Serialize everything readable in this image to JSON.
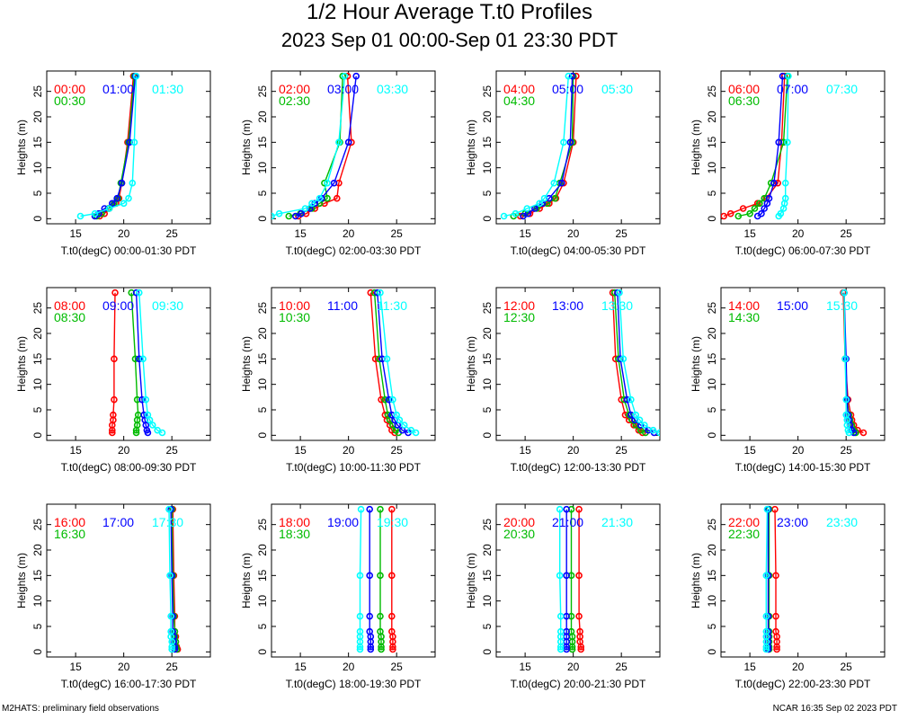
{
  "title": "1/2 Hour Average T.t0 Profiles",
  "subtitle": "2023 Sep 01 00:00-Sep 01 23:30 PDT",
  "footer_left": "M2HATS: preliminary field observations",
  "footer_right": "NCAR 16:35 Sep 02 2023 PDT",
  "colors": {
    "slot1": "#ff0000",
    "slot2": "#00bb00",
    "slot3": "#0000ff",
    "slot4": "#00ffff"
  },
  "chart_data": [
    {
      "type": "line",
      "xlabel": "T.t0(degC) 00:00-01:30 PDT",
      "ylabel": "Heights (m)",
      "xlim": [
        12,
        29
      ],
      "ylim": [
        -1,
        29
      ],
      "xticks": [
        15,
        20,
        25
      ],
      "yticks": [
        0,
        5,
        10,
        15,
        20,
        25
      ],
      "heights": [
        0.5,
        1,
        2,
        3,
        4,
        7,
        15,
        28
      ],
      "series": [
        {
          "name": "00:00",
          "color": "#ff0000",
          "values": [
            17.5,
            18.0,
            18.5,
            19.2,
            19.5,
            19.8,
            20.4,
            21.0
          ]
        },
        {
          "name": "00:30",
          "color": "#00bb00",
          "values": [
            17.2,
            17.7,
            18.4,
            19.0,
            19.4,
            19.7,
            20.5,
            21.1
          ]
        },
        {
          "name": "01:00",
          "color": "#0000ff",
          "values": [
            17.0,
            17.4,
            18.0,
            18.8,
            19.3,
            19.8,
            20.6,
            21.2
          ]
        },
        {
          "name": "01:30",
          "color": "#00ffff",
          "values": [
            15.5,
            17.0,
            18.5,
            20.0,
            20.5,
            20.9,
            21.1,
            21.3
          ]
        }
      ]
    },
    {
      "type": "line",
      "xlabel": "T.t0(degC) 02:00-03:30 PDT",
      "ylabel": "Heights (m)",
      "xlim": [
        12,
        29
      ],
      "ylim": [
        -1,
        29
      ],
      "xticks": [
        15,
        20,
        25
      ],
      "yticks": [
        0,
        5,
        10,
        15,
        20,
        25
      ],
      "heights": [
        0.5,
        1,
        2,
        3,
        4,
        7,
        15,
        28
      ],
      "series": [
        {
          "name": "02:00",
          "color": "#ff0000",
          "values": [
            14.8,
            15.6,
            16.5,
            17.5,
            18.8,
            19.0,
            20.3,
            19.9
          ]
        },
        {
          "name": "02:30",
          "color": "#00bb00",
          "values": [
            13.8,
            15.0,
            16.2,
            17.0,
            17.8,
            17.5,
            19.1,
            19.4
          ]
        },
        {
          "name": "03:00",
          "color": "#0000ff",
          "values": [
            14.5,
            15.1,
            16.0,
            16.5,
            17.2,
            18.5,
            20.0,
            20.8
          ]
        },
        {
          "name": "03:30",
          "color": "#00ffff",
          "values": [
            12.0,
            12.8,
            15.5,
            16.2,
            17.0,
            17.8,
            19.0,
            19.6
          ]
        }
      ]
    },
    {
      "type": "line",
      "xlabel": "T.t0(degC) 04:00-05:30 PDT",
      "ylabel": "Heights (m)",
      "xlim": [
        12,
        29
      ],
      "ylim": [
        -1,
        29
      ],
      "xticks": [
        15,
        20,
        25
      ],
      "yticks": [
        0,
        5,
        10,
        15,
        20,
        25
      ],
      "heights": [
        0.5,
        1,
        2,
        3,
        4,
        7,
        15,
        28
      ],
      "series": [
        {
          "name": "04:00",
          "color": "#ff0000",
          "values": [
            14.5,
            15.5,
            16.5,
            17.5,
            18.2,
            19.0,
            20.0,
            20.3
          ]
        },
        {
          "name": "04:30",
          "color": "#00bb00",
          "values": [
            13.8,
            15.0,
            16.2,
            17.3,
            18.1,
            18.6,
            19.9,
            20.0
          ]
        },
        {
          "name": "05:00",
          "color": "#0000ff",
          "values": [
            14.8,
            15.3,
            16.0,
            16.8,
            17.5,
            18.8,
            19.7,
            19.9
          ]
        },
        {
          "name": "05:30",
          "color": "#00ffff",
          "values": [
            12.8,
            14.0,
            15.2,
            16.5,
            17.0,
            18.0,
            19.0,
            19.5
          ]
        }
      ]
    },
    {
      "type": "line",
      "xlabel": "T.t0(degC) 06:00-07:30 PDT",
      "ylabel": "Heights (m)",
      "xlim": [
        12,
        29
      ],
      "ylim": [
        -1,
        29
      ],
      "xticks": [
        15,
        20,
        25
      ],
      "yticks": [
        0,
        5,
        10,
        15,
        20,
        25
      ],
      "heights": [
        0.5,
        1,
        2,
        3,
        4,
        7,
        15,
        28
      ],
      "series": [
        {
          "name": "06:00",
          "color": "#ff0000",
          "values": [
            12.3,
            13.0,
            14.3,
            15.8,
            16.7,
            17.9,
            18.3,
            18.6
          ]
        },
        {
          "name": "06:30",
          "color": "#00bb00",
          "values": [
            13.8,
            15.0,
            15.5,
            16.0,
            16.5,
            17.2,
            18.5,
            18.9
          ]
        },
        {
          "name": "07:00",
          "color": "#0000ff",
          "values": [
            15.8,
            16.2,
            16.5,
            16.8,
            17.0,
            17.5,
            18.0,
            18.4
          ]
        },
        {
          "name": "07:30",
          "color": "#00ffff",
          "values": [
            18.0,
            18.2,
            18.5,
            18.6,
            18.7,
            18.7,
            18.9,
            19.0
          ]
        }
      ]
    },
    {
      "type": "line",
      "xlabel": "T.t0(degC) 08:00-09:30 PDT",
      "ylabel": "Heights (m)",
      "xlim": [
        12,
        29
      ],
      "ylim": [
        -1,
        29
      ],
      "xticks": [
        15,
        20,
        25
      ],
      "yticks": [
        0,
        5,
        10,
        15,
        20,
        25
      ],
      "heights": [
        0.5,
        1,
        2,
        3,
        4,
        7,
        15,
        28
      ],
      "series": [
        {
          "name": "08:00",
          "color": "#ff0000",
          "values": [
            18.8,
            18.8,
            18.8,
            18.9,
            18.9,
            19.0,
            19.0,
            19.1
          ]
        },
        {
          "name": "08:30",
          "color": "#00bb00",
          "values": [
            21.3,
            21.3,
            21.4,
            21.4,
            21.5,
            21.4,
            21.2,
            20.8
          ]
        },
        {
          "name": "09:00",
          "color": "#0000ff",
          "values": [
            22.5,
            22.4,
            22.3,
            22.2,
            22.1,
            21.9,
            21.6,
            21.3
          ]
        },
        {
          "name": "09:30",
          "color": "#00ffff",
          "values": [
            24.0,
            23.5,
            23.0,
            22.7,
            22.5,
            22.3,
            22.0,
            21.6
          ]
        }
      ]
    },
    {
      "type": "line",
      "xlabel": "T.t0(degC) 10:00-11:30 PDT",
      "ylabel": "Heights (m)",
      "xlim": [
        12,
        29
      ],
      "ylim": [
        -1,
        29
      ],
      "xticks": [
        15,
        20,
        25
      ],
      "yticks": [
        0,
        5,
        10,
        15,
        20,
        25
      ],
      "heights": [
        0.5,
        1,
        2,
        3,
        4,
        7,
        15,
        28
      ],
      "series": [
        {
          "name": "10:00",
          "color": "#ff0000",
          "values": [
            24.8,
            24.5,
            24.3,
            24.0,
            23.8,
            23.4,
            22.8,
            22.3
          ]
        },
        {
          "name": "10:30",
          "color": "#00bb00",
          "values": [
            25.2,
            24.9,
            24.6,
            24.3,
            24.1,
            23.8,
            23.2,
            22.7
          ]
        },
        {
          "name": "11:00",
          "color": "#0000ff",
          "values": [
            26.2,
            25.6,
            25.1,
            24.8,
            24.5,
            24.2,
            23.5,
            23.0
          ]
        },
        {
          "name": "11:30",
          "color": "#00ffff",
          "values": [
            27.0,
            26.5,
            25.8,
            25.3,
            25.0,
            24.6,
            24.0,
            23.3
          ]
        }
      ]
    },
    {
      "type": "line",
      "xlabel": "T.t0(degC) 12:00-13:30 PDT",
      "ylabel": "Heights (m)",
      "xlim": [
        12,
        29
      ],
      "ylim": [
        -1,
        29
      ],
      "xticks": [
        15,
        20,
        25
      ],
      "yticks": [
        0,
        5,
        10,
        15,
        20,
        25
      ],
      "heights": [
        0.5,
        1,
        2,
        3,
        4,
        7,
        15,
        28
      ],
      "series": [
        {
          "name": "12:00",
          "color": "#ff0000",
          "values": [
            27.2,
            26.8,
            26.3,
            25.8,
            25.4,
            25.0,
            24.4,
            24.1
          ]
        },
        {
          "name": "12:30",
          "color": "#00bb00",
          "values": [
            27.5,
            27.0,
            26.5,
            26.1,
            25.8,
            25.3,
            24.7,
            24.3
          ]
        },
        {
          "name": "13:00",
          "color": "#0000ff",
          "values": [
            28.4,
            27.8,
            27.0,
            26.4,
            26.0,
            25.6,
            24.9,
            24.6
          ]
        },
        {
          "name": "13:30",
          "color": "#00ffff",
          "values": [
            29.0,
            28.3,
            27.4,
            26.9,
            26.5,
            26.0,
            25.2,
            24.8
          ]
        }
      ]
    },
    {
      "type": "line",
      "xlabel": "T.t0(degC) 14:00-15:30 PDT",
      "ylabel": "Heights (m)",
      "xlim": [
        12,
        29
      ],
      "ylim": [
        -1,
        29
      ],
      "xticks": [
        15,
        20,
        25
      ],
      "yticks": [
        0,
        5,
        10,
        15,
        20,
        25
      ],
      "heights": [
        0.5,
        1,
        2,
        3,
        4,
        7,
        15,
        28
      ],
      "series": [
        {
          "name": "14:00",
          "color": "#ff0000",
          "values": [
            26.8,
            26.2,
            25.8,
            25.6,
            25.5,
            25.2,
            24.9,
            24.7
          ]
        },
        {
          "name": "14:30",
          "color": "#00bb00",
          "values": [
            26.0,
            25.8,
            25.6,
            25.4,
            25.3,
            25.1,
            24.9,
            24.8
          ]
        },
        {
          "name": "15:00",
          "color": "#0000ff",
          "values": [
            25.8,
            25.6,
            25.4,
            25.3,
            25.2,
            25.1,
            25.0,
            24.8
          ]
        },
        {
          "name": "15:30",
          "color": "#00ffff",
          "values": [
            25.3,
            25.2,
            25.1,
            25.1,
            25.0,
            25.0,
            24.9,
            24.8
          ]
        }
      ]
    },
    {
      "type": "line",
      "xlabel": "T.t0(degC) 16:00-17:30 PDT",
      "ylabel": "Heights (m)",
      "xlim": [
        12,
        29
      ],
      "ylim": [
        -1,
        29
      ],
      "xticks": [
        15,
        20,
        25
      ],
      "yticks": [
        0,
        5,
        10,
        15,
        20,
        25
      ],
      "heights": [
        0.5,
        1,
        2,
        3,
        4,
        7,
        15,
        28
      ],
      "series": [
        {
          "name": "16:00",
          "color": "#ff0000",
          "values": [
            25.6,
            25.5,
            25.4,
            25.4,
            25.3,
            25.3,
            25.2,
            25.1
          ]
        },
        {
          "name": "16:30",
          "color": "#00bb00",
          "values": [
            25.5,
            25.4,
            25.4,
            25.3,
            25.3,
            25.2,
            25.1,
            25.0
          ]
        },
        {
          "name": "17:00",
          "color": "#0000ff",
          "values": [
            25.3,
            25.3,
            25.2,
            25.2,
            25.1,
            25.1,
            25.0,
            24.9
          ]
        },
        {
          "name": "17:30",
          "color": "#00ffff",
          "values": [
            25.0,
            25.0,
            25.0,
            24.9,
            24.9,
            24.9,
            24.8,
            24.7
          ]
        }
      ]
    },
    {
      "type": "line",
      "xlabel": "T.t0(degC) 18:00-19:30 PDT",
      "ylabel": "Heights (m)",
      "xlim": [
        12,
        29
      ],
      "ylim": [
        -1,
        29
      ],
      "xticks": [
        15,
        20,
        25
      ],
      "yticks": [
        0,
        5,
        10,
        15,
        20,
        25
      ],
      "heights": [
        0.5,
        1,
        2,
        3,
        4,
        7,
        15,
        28
      ],
      "series": [
        {
          "name": "18:00",
          "color": "#ff0000",
          "values": [
            24.6,
            24.6,
            24.6,
            24.6,
            24.5,
            24.5,
            24.5,
            24.5
          ]
        },
        {
          "name": "18:30",
          "color": "#00bb00",
          "values": [
            23.4,
            23.4,
            23.4,
            23.4,
            23.3,
            23.3,
            23.3,
            23.3
          ]
        },
        {
          "name": "19:00",
          "color": "#0000ff",
          "values": [
            22.3,
            22.3,
            22.3,
            22.3,
            22.2,
            22.2,
            22.2,
            22.2
          ]
        },
        {
          "name": "19:30",
          "color": "#00ffff",
          "values": [
            21.2,
            21.2,
            21.2,
            21.2,
            21.2,
            21.2,
            21.2,
            21.3
          ]
        }
      ]
    },
    {
      "type": "line",
      "xlabel": "T.t0(degC) 20:00-21:30 PDT",
      "ylabel": "Heights (m)",
      "xlim": [
        12,
        29
      ],
      "ylim": [
        -1,
        29
      ],
      "xticks": [
        15,
        20,
        25
      ],
      "yticks": [
        0,
        5,
        10,
        15,
        20,
        25
      ],
      "heights": [
        0.5,
        1,
        2,
        3,
        4,
        7,
        15,
        28
      ],
      "series": [
        {
          "name": "20:00",
          "color": "#ff0000",
          "values": [
            20.8,
            20.8,
            20.7,
            20.7,
            20.7,
            20.6,
            20.6,
            20.6
          ]
        },
        {
          "name": "20:30",
          "color": "#00bb00",
          "values": [
            19.9,
            19.9,
            19.9,
            19.9,
            19.8,
            19.8,
            19.8,
            19.8
          ]
        },
        {
          "name": "21:00",
          "color": "#0000ff",
          "values": [
            19.3,
            19.3,
            19.3,
            19.3,
            19.3,
            19.3,
            19.3,
            19.3
          ]
        },
        {
          "name": "21:30",
          "color": "#00ffff",
          "values": [
            18.7,
            18.7,
            18.7,
            18.7,
            18.7,
            18.7,
            18.6,
            18.6
          ]
        }
      ]
    },
    {
      "type": "line",
      "xlabel": "T.t0(degC) 22:00-23:30 PDT",
      "ylabel": "Heights (m)",
      "xlim": [
        12,
        29
      ],
      "ylim": [
        -1,
        29
      ],
      "xticks": [
        15,
        20,
        25
      ],
      "yticks": [
        0,
        5,
        10,
        15,
        20,
        25
      ],
      "heights": [
        0.5,
        1,
        2,
        3,
        4,
        7,
        15,
        28
      ],
      "series": [
        {
          "name": "22:00",
          "color": "#ff0000",
          "values": [
            17.8,
            17.8,
            17.8,
            17.8,
            17.7,
            17.7,
            17.7,
            17.6
          ]
        },
        {
          "name": "22:30",
          "color": "#00bb00",
          "values": [
            17.0,
            17.0,
            17.0,
            17.0,
            17.0,
            17.0,
            17.0,
            17.0
          ]
        },
        {
          "name": "23:00",
          "color": "#0000ff",
          "values": [
            16.9,
            16.9,
            16.9,
            16.9,
            16.9,
            16.9,
            16.9,
            16.9
          ]
        },
        {
          "name": "23:30",
          "color": "#00ffff",
          "values": [
            16.7,
            16.7,
            16.7,
            16.7,
            16.7,
            16.7,
            16.7,
            16.8
          ]
        }
      ]
    }
  ]
}
